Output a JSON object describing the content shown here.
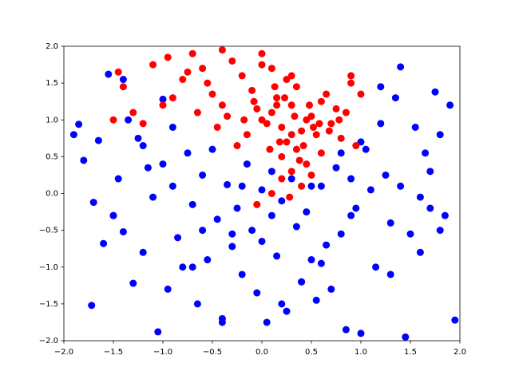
{
  "chart_data": {
    "type": "scatter",
    "xlim": [
      -2,
      2
    ],
    "ylim": [
      -2,
      2
    ],
    "xticks": [
      {
        "value": -2,
        "label": "−2.0"
      },
      {
        "value": -1.5,
        "label": "−1.5"
      },
      {
        "value": -1,
        "label": "−1.0"
      },
      {
        "value": -0.5,
        "label": "−0.5"
      },
      {
        "value": 0,
        "label": "0.0"
      },
      {
        "value": 0.5,
        "label": "0.5"
      },
      {
        "value": 1,
        "label": "1.0"
      },
      {
        "value": 1.5,
        "label": "1.5"
      },
      {
        "value": 2,
        "label": "2.0"
      }
    ],
    "yticks": [
      {
        "value": -2,
        "label": "−2.0"
      },
      {
        "value": -1.5,
        "label": "−1.5"
      },
      {
        "value": -1,
        "label": "−1.0"
      },
      {
        "value": -0.5,
        "label": "−0.5"
      },
      {
        "value": 0,
        "label": "0.0"
      },
      {
        "value": 0.5,
        "label": "0.5"
      },
      {
        "value": 1,
        "label": "1.0"
      },
      {
        "value": 1.5,
        "label": "1.5"
      },
      {
        "value": 2,
        "label": "2.0"
      }
    ],
    "series": [
      {
        "color": "#0000ff",
        "x": [
          -1.85,
          -1.8,
          -1.72,
          -1.65,
          -1.6,
          -1.55,
          -1.5,
          -1.45,
          -1.4,
          -1.35,
          -1.3,
          -1.25,
          -1.2,
          -1.15,
          -1.1,
          -1.05,
          -1.0,
          -0.95,
          -0.9,
          -0.85,
          -0.8,
          -0.75,
          -0.7,
          -0.65,
          -0.6,
          -0.55,
          -0.5,
          -0.45,
          -0.4,
          -0.35,
          -0.3,
          -0.25,
          -0.2,
          -0.15,
          -0.1,
          -0.05,
          0.0,
          0.05,
          0.1,
          0.15,
          0.2,
          0.25,
          0.3,
          0.35,
          0.4,
          0.45,
          0.5,
          0.55,
          0.6,
          0.65,
          0.7,
          0.75,
          0.8,
          0.85,
          0.9,
          0.95,
          1.0,
          1.05,
          1.1,
          1.15,
          1.2,
          1.25,
          1.3,
          1.35,
          1.4,
          1.45,
          1.5,
          1.55,
          1.6,
          1.65,
          1.7,
          1.75,
          1.8,
          1.85,
          1.9,
          1.95,
          -1.9,
          -1.4,
          -1.0,
          -0.6,
          -0.2,
          0.2,
          0.6,
          1.0,
          1.4,
          1.8,
          -1.7,
          -1.2,
          -0.7,
          -0.3,
          0.1,
          0.5,
          0.9,
          1.3,
          1.7,
          -1.5,
          -0.9,
          -0.4,
          0.0,
          0.4,
          0.8,
          1.2,
          1.6
        ],
        "y": [
          0.94,
          0.45,
          -1.52,
          0.72,
          -0.68,
          1.62,
          -0.3,
          0.2,
          -0.52,
          1.0,
          -1.22,
          0.75,
          -0.8,
          0.35,
          -0.05,
          -1.88,
          0.4,
          -1.3,
          0.9,
          -0.6,
          -1.0,
          0.55,
          -0.15,
          -1.5,
          0.25,
          -0.9,
          0.6,
          -0.35,
          -1.7,
          0.12,
          -0.72,
          -0.2,
          -1.1,
          0.4,
          -0.5,
          -1.35,
          0.05,
          -1.75,
          0.3,
          -0.85,
          -0.1,
          -1.6,
          0.2,
          -0.45,
          -1.2,
          -0.25,
          -0.9,
          -1.45,
          0.1,
          -0.7,
          -1.3,
          0.35,
          -0.55,
          -1.85,
          0.2,
          -0.2,
          -1.9,
          0.6,
          0.05,
          -1.0,
          1.45,
          0.25,
          -0.4,
          1.3,
          1.72,
          -1.95,
          -0.55,
          0.9,
          -0.8,
          0.55,
          0.3,
          1.38,
          0.8,
          -0.3,
          1.2,
          -1.72,
          0.8,
          1.55,
          1.28,
          -0.5,
          0.1,
          -1.5,
          -0.95,
          0.7,
          0.1,
          -0.5,
          -0.12,
          0.65,
          -1.0,
          -0.55,
          -0.3,
          0.1,
          -0.3,
          -1.1,
          -0.2,
          -0.3,
          0.1,
          -1.75,
          -0.65,
          -1.2,
          0.55,
          0.95,
          -0.05
        ]
      },
      {
        "color": "#ff0000",
        "x": [
          0.0,
          0.1,
          0.2,
          0.3,
          0.4,
          0.5,
          0.25,
          0.15,
          0.35,
          0.05,
          -0.05,
          0.45,
          0.55,
          0.6,
          0.7,
          0.8,
          0.85,
          0.9,
          -0.1,
          -0.2,
          -0.3,
          -0.4,
          -0.5,
          -0.6,
          -0.7,
          -0.8,
          -0.9,
          -1.0,
          -1.1,
          -1.2,
          -1.3,
          -1.4,
          -1.5,
          -0.95,
          -0.75,
          -0.55,
          -0.35,
          -0.15,
          0.2,
          0.3,
          0.4,
          0.5,
          0.6,
          0.65,
          0.75,
          0.95,
          0.25,
          0.35,
          0.1,
          0.0,
          -0.25,
          -0.45,
          -0.65,
          0.15,
          0.3,
          0.45,
          0.2,
          0.1,
          0.38,
          0.28,
          0.18,
          0.08,
          0.42,
          0.52,
          -0.08,
          -0.18,
          0.33,
          0.23,
          0.13,
          0.48,
          -1.45,
          -0.05,
          0.58,
          0.68,
          0.78,
          1.0,
          0.9,
          -0.4,
          0.0,
          0.3
        ],
        "y": [
          1.0,
          1.1,
          0.9,
          1.2,
          0.85,
          1.05,
          0.7,
          1.3,
          0.6,
          0.95,
          1.15,
          0.4,
          0.8,
          1.25,
          0.95,
          0.75,
          1.1,
          1.5,
          1.4,
          1.6,
          1.8,
          1.2,
          1.35,
          1.7,
          1.9,
          1.55,
          1.3,
          1.2,
          1.75,
          0.95,
          1.1,
          1.45,
          1.0,
          1.85,
          1.65,
          1.5,
          1.05,
          0.8,
          0.5,
          0.3,
          0.1,
          0.25,
          0.55,
          1.35,
          1.15,
          0.65,
          1.55,
          1.45,
          1.7,
          1.9,
          0.65,
          0.9,
          1.1,
          1.2,
          0.8,
          1.0,
          0.2,
          0.0,
          0.45,
          -0.05,
          0.7,
          0.6,
          0.65,
          0.9,
          1.25,
          1.0,
          1.05,
          1.3,
          1.45,
          1.2,
          1.65,
          -0.15,
          0.95,
          0.85,
          1.0,
          1.35,
          1.6,
          1.95,
          1.75,
          1.6
        ]
      }
    ]
  }
}
